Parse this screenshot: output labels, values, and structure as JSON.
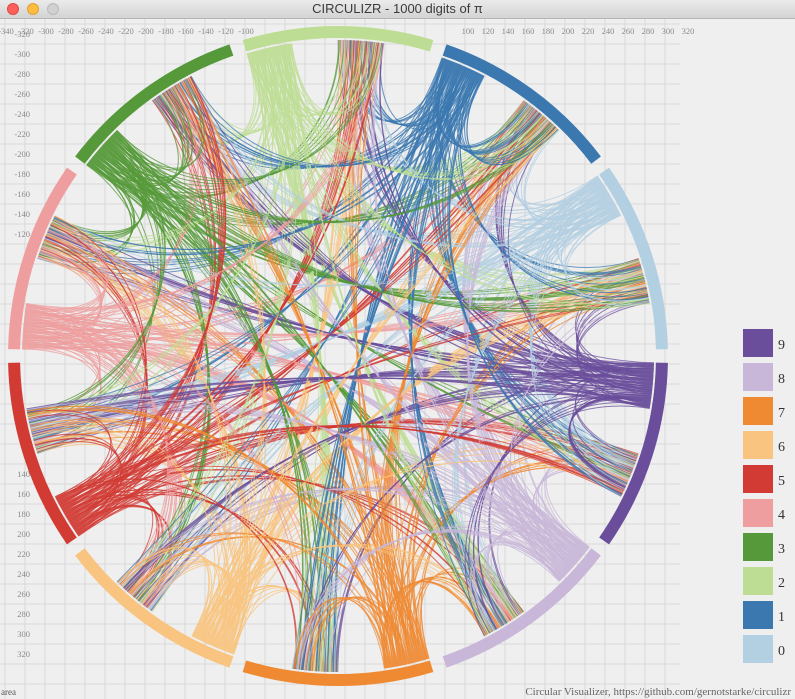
{
  "window": {
    "title": "CIRCULIZR - 1000 digits of π"
  },
  "axes": {
    "x_ticks_left": [
      "-340",
      "-320",
      "-300",
      "-280",
      "-260",
      "-240",
      "-220",
      "-200",
      "-180",
      "-160",
      "-140",
      "-120",
      "-100"
    ],
    "x_ticks_right": [
      "100",
      "120",
      "140",
      "160",
      "180",
      "200",
      "220",
      "240",
      "260",
      "280",
      "300",
      "320"
    ],
    "y_ticks_top": [
      "-320",
      "-300",
      "-280",
      "-260",
      "-240",
      "-220",
      "-200",
      "-180",
      "-160",
      "-140",
      "-120"
    ],
    "y_ticks_bottom": [
      "140",
      "160",
      "180",
      "200",
      "220",
      "240",
      "260",
      "280",
      "300",
      "320"
    ]
  },
  "chart_data": {
    "type": "chord",
    "title": "CIRCULIZR - 1000 digits of π",
    "categories": [
      "0",
      "1",
      "2",
      "3",
      "4",
      "5",
      "6",
      "7",
      "8",
      "9"
    ],
    "colors": {
      "0": "#b3cfe2",
      "1": "#3b78b0",
      "2": "#bedd94",
      "3": "#55993a",
      "4": "#ee9e9e",
      "5": "#d23b34",
      "6": "#f8c47f",
      "7": "#ef8a33",
      "8": "#c8b7d8",
      "9": "#6a4d9b"
    },
    "sequence_source": "pi",
    "digits_count": 1000,
    "legend_order": [
      "9",
      "8",
      "7",
      "6",
      "5",
      "4",
      "3",
      "2",
      "1",
      "0"
    ],
    "legend_position": "right",
    "grid": true
  },
  "legend": {
    "items": [
      "9",
      "8",
      "7",
      "6",
      "5",
      "4",
      "3",
      "2",
      "1",
      "0"
    ]
  },
  "footer": {
    "credit": "Circular Visualizer, https://github.com/gernotstarke/circulizr",
    "corner_label": "area"
  }
}
